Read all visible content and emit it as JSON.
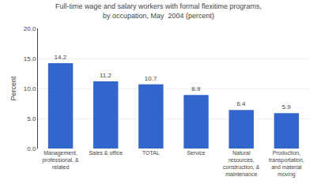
{
  "chart_data": {
    "type": "bar",
    "title": "Full-time wage and salary workers with formal flexitime programs,\nby occupation, May  2004 (percent)",
    "ylabel": "Percent",
    "categories": [
      "Management,\nprofessional, &\nrelated",
      "Sales & office",
      "TOTAL",
      "Service",
      "Natural\nresources,\nconstruction, &\nmaintenance",
      "Production,\ntransportation,\nand material\nmoving"
    ],
    "values": [
      14.2,
      11.2,
      10.7,
      8.9,
      6.4,
      5.9
    ],
    "color": "#3366cc",
    "ylim": [
      0,
      20.0
    ],
    "yticks": [
      {
        "value": 0.0,
        "label": "0.0"
      },
      {
        "value": 5.0,
        "label": "5.0"
      },
      {
        "value": 10.0,
        "label": "10.0"
      },
      {
        "value": 15.0,
        "label": "15.0"
      },
      {
        "value": 20.0,
        "label": "20.0"
      }
    ],
    "grid": true,
    "data_labels": true
  }
}
